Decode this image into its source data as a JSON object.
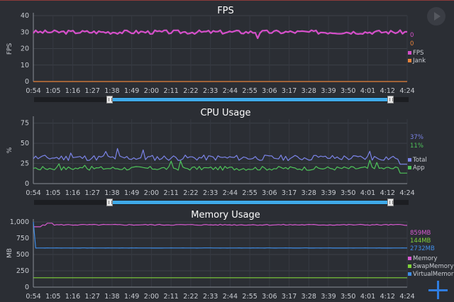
{
  "x_ticks": [
    "0:54",
    "1:05",
    "1:16",
    "1:27",
    "1:38",
    "1:49",
    "2:00",
    "2:11",
    "2:22",
    "2:33",
    "2:44",
    "2:55",
    "3:06",
    "3:17",
    "3:28",
    "3:39",
    "3:50",
    "4:01",
    "4:12",
    "4:24"
  ],
  "colors": {
    "background": "#2b2e34",
    "fps": "#d54fc9",
    "jank": "#e8833a",
    "total": "#7b84e8",
    "app": "#4ec45a",
    "memory": "#d75ad0",
    "swap": "#7fd23a",
    "virtual": "#3f8ee8",
    "scroll": "#3fa9e8",
    "plus": "#2f7de0"
  },
  "fps_panel": {
    "title": "FPS",
    "ylabel": "FPS",
    "y_ticks": [
      "40",
      "30",
      "20",
      "10",
      "0"
    ],
    "values": [
      {
        "text": "0",
        "color": "#d54fc9"
      },
      {
        "text": "0",
        "color": "#e8833a"
      }
    ],
    "legend": [
      {
        "label": "FPS",
        "color": "#d54fc9"
      },
      {
        "label": "Jank",
        "color": "#e8833a"
      }
    ]
  },
  "cpu_panel": {
    "title": "CPU Usage",
    "ylabel": "%",
    "y_ticks": [
      "75",
      "50",
      "25",
      "0"
    ],
    "values": [
      {
        "text": "37%",
        "color": "#7b84e8"
      },
      {
        "text": "11%",
        "color": "#4ec45a"
      }
    ],
    "legend": [
      {
        "label": "Total",
        "color": "#7b84e8"
      },
      {
        "label": "App",
        "color": "#4ec45a"
      }
    ]
  },
  "mem_panel": {
    "title": "Memory Usage",
    "ylabel": "MB",
    "y_ticks": [
      "1,000",
      "750",
      "500",
      "250",
      "0"
    ],
    "values": [
      {
        "text": "859MB",
        "color": "#d75ad0"
      },
      {
        "text": "144MB",
        "color": "#7fd23a"
      },
      {
        "text": "2732MB",
        "color": "#3f8ee8"
      }
    ],
    "legend": [
      {
        "label": "Memory",
        "color": "#d75ad0"
      },
      {
        "label": "SwapMemory",
        "color": "#7fd23a"
      },
      {
        "label": "VirtualMemory",
        "color": "#3f8ee8"
      }
    ]
  },
  "scroll_range": [
    0.2,
    0.95
  ],
  "chart_data": [
    {
      "type": "line",
      "title": "FPS",
      "ylabel": "FPS",
      "ylim": [
        0,
        40
      ],
      "grid": true,
      "legend_position": "right",
      "x_range": [
        "0:54",
        "4:24"
      ],
      "series": [
        {
          "name": "FPS",
          "approx_level": 30,
          "wiggle": 1.2,
          "dips": [
            {
              "at": 0.6,
              "depth": 3.0
            }
          ],
          "spike_count": 0,
          "seed": 3
        },
        {
          "name": "Jank",
          "approx_level": 0,
          "wiggle": 0,
          "dips": [],
          "spike_count": 0,
          "seed": 1
        }
      ]
    },
    {
      "type": "line",
      "title": "CPU Usage",
      "ylabel": "%",
      "ylim": [
        0,
        80
      ],
      "grid": true,
      "legend_position": "right",
      "x_range": [
        "0:54",
        "4:24"
      ],
      "series": [
        {
          "name": "Total",
          "approx_level": 32,
          "wiggle": 3.5,
          "dips": [],
          "spike_count": 6,
          "spike_height": 10,
          "seed": 11
        },
        {
          "name": "App",
          "approx_level": 19,
          "wiggle": 2.5,
          "dips": [],
          "spike_count": 6,
          "spike_height": 10,
          "seed": 17
        }
      ]
    },
    {
      "type": "line",
      "title": "Memory Usage",
      "ylabel": "MB",
      "ylim": [
        0,
        1000
      ],
      "grid": true,
      "legend_position": "right",
      "x_range": [
        "0:54",
        "4:24"
      ],
      "series": [
        {
          "name": "Memory",
          "approx_level": 955,
          "wiggle": 8,
          "dips": [],
          "spike_count": 0,
          "seed": 5
        },
        {
          "name": "SwapMemory",
          "approx_level": 144,
          "wiggle": 0,
          "dips": [],
          "spike_count": 0,
          "seed": 2
        },
        {
          "name": "VirtualMemory",
          "approx_level": 600,
          "wiggle": 1,
          "dips": [],
          "spike_count": 0,
          "seed": 7
        }
      ]
    }
  ]
}
